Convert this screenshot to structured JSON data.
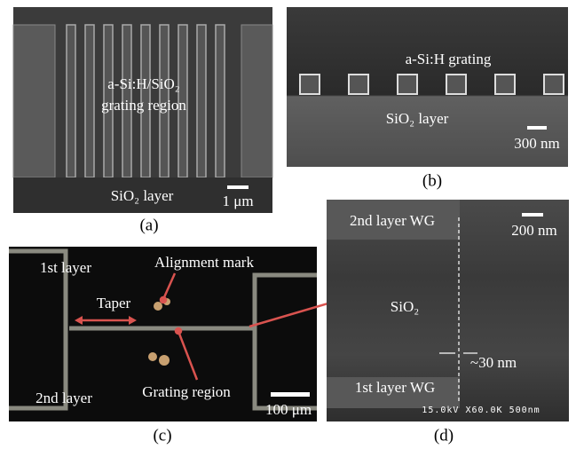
{
  "panels": [
    {
      "label": "(a)",
      "annotations": [
        "a-Si:H/SiO₂",
        "grating region",
        "SiO₂ layer",
        "1 μm"
      ]
    },
    {
      "label": "(b)",
      "annotations": [
        "a-Si:H grating",
        "SiO₂ layer",
        "300 nm"
      ]
    },
    {
      "label": "(c)",
      "annotations": [
        "1st layer",
        "Alignment mark",
        "Taper",
        "2nd layer",
        "Grating region",
        "100 μm"
      ]
    },
    {
      "label": "(d)",
      "annotations": [
        "2nd layer WG",
        "200 nm",
        "SiO₂",
        "~30 nm",
        "1st layer WG",
        "15.0kV X60.0K 500nm"
      ]
    }
  ]
}
